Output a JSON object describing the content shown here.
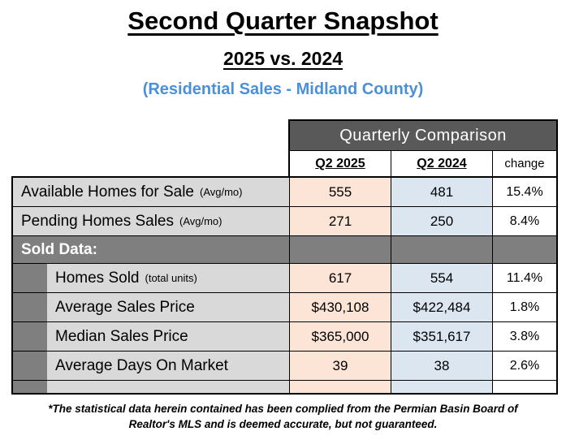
{
  "page": {
    "title": "Second Quarter Snapshot",
    "subtitle": "2025 vs. 2024",
    "tagline": "(Residential Sales - Midland County)"
  },
  "table": {
    "title": "Quarterly Comparison",
    "columns": [
      "Q2 2025",
      "Q2 2024",
      "change"
    ],
    "rows": [
      {
        "label": "Available Homes for Sale",
        "note": "(Avg/mo)",
        "v2025": "555",
        "v2024": "481",
        "change": "15.4%"
      },
      {
        "label": "Pending Homes Sales",
        "note": "(Avg/mo)",
        "v2025": "271",
        "v2024": "250",
        "change": "8.4%"
      },
      {
        "label": "Sold Data:"
      },
      {
        "label": "Homes Sold",
        "note": "(total units)",
        "v2025": "617",
        "v2024": "554",
        "change": "11.4%"
      },
      {
        "label": "Average Sales Price",
        "note": "",
        "v2025": "$430,108",
        "v2024": "$422,484",
        "change": "1.8%"
      },
      {
        "label": "Median Sales Price",
        "note": "",
        "v2025": "$365,000",
        "v2024": "$351,617",
        "change": "3.8%"
      },
      {
        "label": "Average Days On Market",
        "note": "",
        "v2025": "39",
        "v2024": "38",
        "change": "2.6%"
      }
    ]
  },
  "footer": {
    "line1": "*The statistical data herein contained has been complied from the Permian Basin Board of",
    "line2": "Realtor's MLS and is deemed accurate, but not guaranteed."
  },
  "colors": {
    "tagline_blue": "#4a90d9",
    "table_header_gray": "#595959",
    "section_row_gray": "#7f7f7f",
    "label_gray": "#d9d9d9",
    "q2_2025_peach": "#fce4d6",
    "q2_2024_blue": "#dce6f1"
  }
}
